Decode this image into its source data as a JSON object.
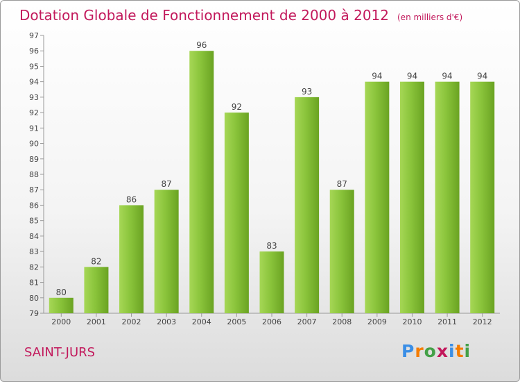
{
  "title": "Dotation Globale de Fonctionnement de 2000 à 2012",
  "unit_note": "(en milliers d'€)",
  "commune": "SAINT-JURS",
  "logo": {
    "text": "Proxiti",
    "letter_colors": [
      "#3a8ee6",
      "#f57c00",
      "#43a047",
      "#c2185b",
      "#3a8ee6",
      "#f57c00",
      "#43a047"
    ]
  },
  "colors": {
    "bar": "#8ac43b",
    "bar_light": "#a6d756",
    "bar_dark": "#6aa322",
    "title": "#c2185b"
  },
  "chart_data": {
    "type": "bar",
    "title": "Dotation Globale de Fonctionnement de 2000 à 2012",
    "subtitle": "(en milliers d'€)",
    "xlabel": "",
    "ylabel": "",
    "categories": [
      "2000",
      "2001",
      "2002",
      "2003",
      "2004",
      "2005",
      "2006",
      "2007",
      "2008",
      "2009",
      "2010",
      "2011",
      "2012"
    ],
    "values": [
      80,
      82,
      86,
      87,
      96,
      92,
      83,
      93,
      87,
      94,
      94,
      94,
      94
    ],
    "ylim": [
      79,
      97
    ],
    "yticks": [
      79,
      80,
      81,
      82,
      83,
      84,
      85,
      86,
      87,
      88,
      89,
      90,
      91,
      92,
      93,
      94,
      95,
      96,
      97
    ],
    "grid": false,
    "legend": "none",
    "data_labels": true
  }
}
